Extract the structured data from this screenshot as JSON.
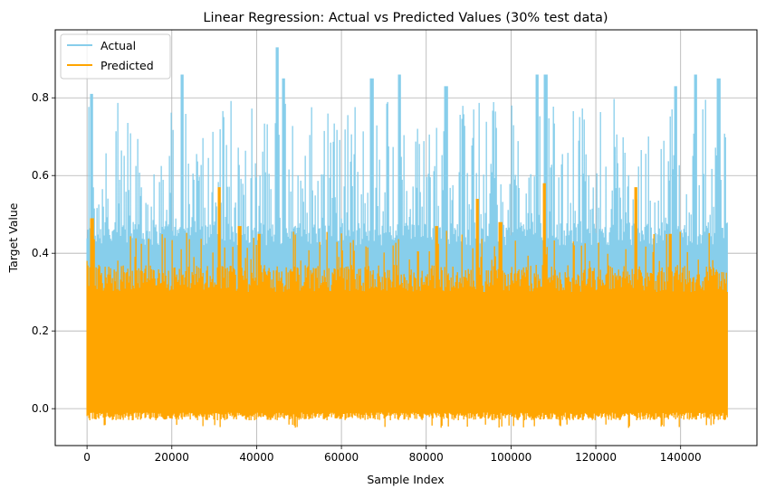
{
  "chart_data": {
    "type": "line",
    "title": "Linear Regression: Actual vs Predicted Values (30% test data)",
    "xlabel": "Sample Index",
    "ylabel": "Target Value",
    "xlim": [
      -7500,
      158000
    ],
    "ylim": [
      -0.095,
      0.975
    ],
    "xticks": [
      0,
      20000,
      40000,
      60000,
      80000,
      100000,
      120000,
      140000
    ],
    "xtick_labels": [
      "0",
      "20000",
      "40000",
      "60000",
      "80000",
      "100000",
      "120000",
      "140000"
    ],
    "yticks": [
      0.0,
      0.2,
      0.4,
      0.6,
      0.8
    ],
    "ytick_labels": [
      "0.0",
      "0.2",
      "0.4",
      "0.6",
      "0.8"
    ],
    "grid": true,
    "legend_position": "top-left",
    "n_points": 151000,
    "series": [
      {
        "name": "Actual",
        "color": "#87CEEB",
        "baseline_range": [
          -0.01,
          0.46
        ],
        "notable_peaks": [
          {
            "x": 1000,
            "y": 0.81
          },
          {
            "x": 22500,
            "y": 0.86
          },
          {
            "x": 44900,
            "y": 0.93
          },
          {
            "x": 46300,
            "y": 0.85
          },
          {
            "x": 67200,
            "y": 0.85
          },
          {
            "x": 73700,
            "y": 0.86
          },
          {
            "x": 84700,
            "y": 0.83
          },
          {
            "x": 106100,
            "y": 0.86
          },
          {
            "x": 108200,
            "y": 0.86
          },
          {
            "x": 138800,
            "y": 0.83
          },
          {
            "x": 143600,
            "y": 0.86
          },
          {
            "x": 149000,
            "y": 0.85
          }
        ]
      },
      {
        "name": "Predicted",
        "color": "#FFA500",
        "baseline_range": [
          -0.03,
          0.3
        ],
        "notable_peaks": [
          {
            "x": 1200,
            "y": 0.49
          },
          {
            "x": 31200,
            "y": 0.57
          },
          {
            "x": 36000,
            "y": 0.47
          },
          {
            "x": 40600,
            "y": 0.45
          },
          {
            "x": 82500,
            "y": 0.47
          },
          {
            "x": 92000,
            "y": 0.54
          },
          {
            "x": 97500,
            "y": 0.48
          },
          {
            "x": 107800,
            "y": 0.58
          },
          {
            "x": 129500,
            "y": 0.57
          },
          {
            "x": 137500,
            "y": 0.45
          }
        ],
        "min": -0.05
      }
    ]
  }
}
